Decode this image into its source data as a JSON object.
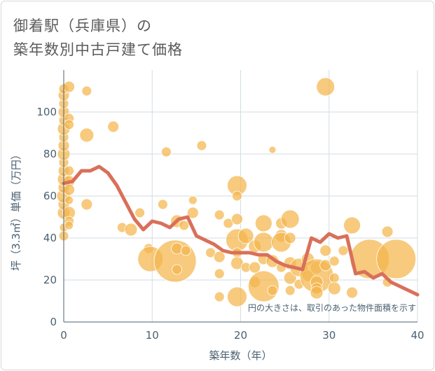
{
  "title_line1": "御着駅（兵庫県）の",
  "title_line2": "築年数別中古戸建て価格",
  "colors": {
    "bubble": "#f4b54c",
    "line": "#d9705a",
    "grid": "#d3dde3",
    "axis": "#4a6172"
  },
  "chart_data": {
    "type": "scatter",
    "xlabel": "築年数（年）",
    "ylabel": "坪（3.3㎡）単価（万円）",
    "xlim": [
      0,
      40
    ],
    "ylim": [
      0,
      120
    ],
    "x_ticks": [
      0,
      10,
      20,
      30,
      40
    ],
    "y_ticks": [
      0,
      20,
      40,
      60,
      80,
      100
    ],
    "grid": true,
    "note": "円の大きさは、取引のあった物件面積を示す",
    "points": [
      {
        "x": 0,
        "y": 41,
        "s": 7
      },
      {
        "x": 0,
        "y": 45,
        "s": 6
      },
      {
        "x": 0,
        "y": 52,
        "s": 9
      },
      {
        "x": 0,
        "y": 56,
        "s": 8
      },
      {
        "x": 0,
        "y": 60,
        "s": 10
      },
      {
        "x": 0,
        "y": 64,
        "s": 8
      },
      {
        "x": 0,
        "y": 68,
        "s": 9
      },
      {
        "x": 0,
        "y": 72,
        "s": 8
      },
      {
        "x": 0,
        "y": 76,
        "s": 7
      },
      {
        "x": 0,
        "y": 80,
        "s": 9
      },
      {
        "x": 0,
        "y": 84,
        "s": 8
      },
      {
        "x": 0,
        "y": 88,
        "s": 7
      },
      {
        "x": 0,
        "y": 92,
        "s": 9
      },
      {
        "x": 0,
        "y": 96,
        "s": 7
      },
      {
        "x": 0,
        "y": 100,
        "s": 8
      },
      {
        "x": 0,
        "y": 104,
        "s": 7
      },
      {
        "x": 0,
        "y": 108,
        "s": 8
      },
      {
        "x": 0,
        "y": 111,
        "s": 7
      },
      {
        "x": 0.6,
        "y": 112,
        "s": 8
      },
      {
        "x": 0.6,
        "y": 97,
        "s": 7
      },
      {
        "x": 0.6,
        "y": 94,
        "s": 7
      },
      {
        "x": 0.6,
        "y": 72,
        "s": 7
      },
      {
        "x": 0.6,
        "y": 67,
        "s": 8
      },
      {
        "x": 0.6,
        "y": 63,
        "s": 8
      },
      {
        "x": 0.6,
        "y": 58,
        "s": 6
      },
      {
        "x": 0.6,
        "y": 52,
        "s": 9
      },
      {
        "x": 0.6,
        "y": 48,
        "s": 7
      },
      {
        "x": 0.6,
        "y": 46,
        "s": 6
      },
      {
        "x": 2.6,
        "y": 110,
        "s": 7
      },
      {
        "x": 2.6,
        "y": 89,
        "s": 10
      },
      {
        "x": 2.6,
        "y": 56,
        "s": 8
      },
      {
        "x": 5.6,
        "y": 93,
        "s": 8
      },
      {
        "x": 6.6,
        "y": 45,
        "s": 7
      },
      {
        "x": 7.6,
        "y": 44,
        "s": 9
      },
      {
        "x": 8.6,
        "y": 52,
        "s": 7
      },
      {
        "x": 9.6,
        "y": 35,
        "s": 7
      },
      {
        "x": 9.8,
        "y": 30,
        "s": 18
      },
      {
        "x": 11.2,
        "y": 56,
        "s": 7
      },
      {
        "x": 11.6,
        "y": 81,
        "s": 7
      },
      {
        "x": 12.6,
        "y": 29,
        "s": 30
      },
      {
        "x": 12.8,
        "y": 48,
        "s": 9
      },
      {
        "x": 12.8,
        "y": 35,
        "s": 8
      },
      {
        "x": 12.8,
        "y": 25,
        "s": 7
      },
      {
        "x": 13.6,
        "y": 46,
        "s": 7
      },
      {
        "x": 13.8,
        "y": 34,
        "s": 7
      },
      {
        "x": 14.6,
        "y": 58,
        "s": 6
      },
      {
        "x": 14.6,
        "y": 52,
        "s": 8
      },
      {
        "x": 15.6,
        "y": 84,
        "s": 7
      },
      {
        "x": 16.6,
        "y": 33,
        "s": 7
      },
      {
        "x": 17.6,
        "y": 51,
        "s": 7
      },
      {
        "x": 17.6,
        "y": 31,
        "s": 8
      },
      {
        "x": 17.6,
        "y": 23,
        "s": 7
      },
      {
        "x": 17.6,
        "y": 12,
        "s": 7
      },
      {
        "x": 18.6,
        "y": 47,
        "s": 7
      },
      {
        "x": 19.6,
        "y": 65,
        "s": 14
      },
      {
        "x": 19.6,
        "y": 60,
        "s": 7
      },
      {
        "x": 19.6,
        "y": 49,
        "s": 8
      },
      {
        "x": 19.6,
        "y": 39,
        "s": 16
      },
      {
        "x": 19.6,
        "y": 33,
        "s": 7
      },
      {
        "x": 19.6,
        "y": 28,
        "s": 9
      },
      {
        "x": 19.6,
        "y": 12,
        "s": 14
      },
      {
        "x": 20.6,
        "y": 41,
        "s": 11
      },
      {
        "x": 20.6,
        "y": 26,
        "s": 7
      },
      {
        "x": 21.6,
        "y": 36,
        "s": 9
      },
      {
        "x": 21.6,
        "y": 26,
        "s": 8
      },
      {
        "x": 21.6,
        "y": 19,
        "s": 8
      },
      {
        "x": 22.6,
        "y": 47,
        "s": 12
      },
      {
        "x": 22.6,
        "y": 38,
        "s": 14
      },
      {
        "x": 22.6,
        "y": 30,
        "s": 8
      },
      {
        "x": 22.6,
        "y": 17,
        "s": 22
      },
      {
        "x": 23.6,
        "y": 82,
        "s": 5
      },
      {
        "x": 23.6,
        "y": 29,
        "s": 9
      },
      {
        "x": 23.6,
        "y": 15,
        "s": 7
      },
      {
        "x": 24.6,
        "y": 47,
        "s": 8
      },
      {
        "x": 24.6,
        "y": 41,
        "s": 9
      },
      {
        "x": 24.6,
        "y": 38,
        "s": 14
      },
      {
        "x": 24.6,
        "y": 26,
        "s": 7
      },
      {
        "x": 25.6,
        "y": 49,
        "s": 13
      },
      {
        "x": 25.6,
        "y": 40,
        "s": 8
      },
      {
        "x": 25.6,
        "y": 28,
        "s": 9
      },
      {
        "x": 25.6,
        "y": 21,
        "s": 9
      },
      {
        "x": 25.6,
        "y": 15,
        "s": 7
      },
      {
        "x": 26.6,
        "y": 26,
        "s": 13
      },
      {
        "x": 26.6,
        "y": 18,
        "s": 7
      },
      {
        "x": 27.6,
        "y": 30,
        "s": 9
      },
      {
        "x": 27.6,
        "y": 22,
        "s": 8
      },
      {
        "x": 28.6,
        "y": 26,
        "s": 9
      },
      {
        "x": 28.6,
        "y": 22,
        "s": 24
      },
      {
        "x": 28.6,
        "y": 19,
        "s": 9
      },
      {
        "x": 28.6,
        "y": 16,
        "s": 8
      },
      {
        "x": 28.6,
        "y": 14,
        "s": 9
      },
      {
        "x": 29.6,
        "y": 112,
        "s": 13
      },
      {
        "x": 29.6,
        "y": 34,
        "s": 8
      },
      {
        "x": 29.6,
        "y": 27,
        "s": 8
      },
      {
        "x": 30.6,
        "y": 29,
        "s": 7
      },
      {
        "x": 30.6,
        "y": 21,
        "s": 7
      },
      {
        "x": 30.6,
        "y": 16,
        "s": 9
      },
      {
        "x": 31.6,
        "y": 34,
        "s": 7
      },
      {
        "x": 32.6,
        "y": 46,
        "s": 12
      },
      {
        "x": 32.6,
        "y": 14,
        "s": 8
      },
      {
        "x": 34.6,
        "y": 30,
        "s": 28
      },
      {
        "x": 36.6,
        "y": 43,
        "s": 8
      },
      {
        "x": 36.6,
        "y": 19,
        "s": 7
      },
      {
        "x": 37.6,
        "y": 30,
        "s": 28
      }
    ],
    "trend": {
      "x": [
        0,
        1,
        2,
        3,
        4,
        5,
        6,
        7,
        8,
        9,
        10,
        11,
        12,
        13,
        14,
        15,
        16,
        17,
        18,
        19,
        20,
        21,
        22,
        23,
        24,
        25,
        26,
        27,
        28,
        29,
        30,
        31,
        32,
        33,
        34,
        35,
        36,
        37,
        38,
        39,
        40
      ],
      "y": [
        66,
        67,
        72,
        72,
        74,
        71,
        65,
        57,
        49,
        44,
        48,
        47,
        45,
        49,
        50,
        41,
        39,
        37,
        34,
        33,
        33,
        33,
        32,
        32,
        29,
        27,
        26,
        25,
        40,
        38,
        42,
        40,
        41,
        23,
        24,
        21,
        23,
        19,
        17,
        15,
        13
      ]
    }
  }
}
